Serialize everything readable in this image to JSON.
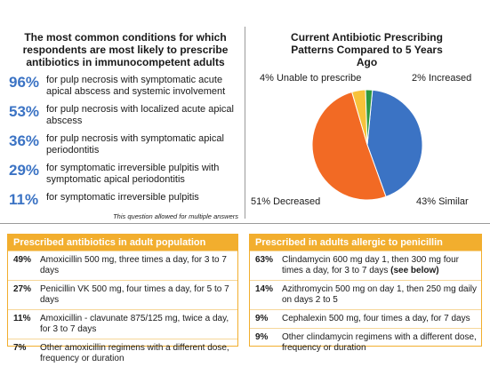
{
  "left": {
    "title": "The most common conditions for which respondents are most likely to prescribe antibiotics in immunocompetent adults",
    "items": [
      {
        "pct": "96%",
        "text": "for pulp necrosis with symptomatic acute apical abscess and systemic involvement"
      },
      {
        "pct": "53%",
        "text": "for pulp necrosis with localized acute apical abscess"
      },
      {
        "pct": "36%",
        "text": "for pulp necrosis with symptomatic apical periodontitis"
      },
      {
        "pct": "29%",
        "text": "for symptomatic irreversible pulpitis with symptomatic apical periodontitis"
      },
      {
        "pct": "11%",
        "text": "for symptomatic irreversible pulpitis"
      }
    ],
    "note": "This question allowed for multiple answers"
  },
  "chart_data": {
    "type": "pie",
    "title": "Current Antibiotic Prescribing Patterns Compared to 5 Years Ago",
    "slices": [
      {
        "label": "Similar",
        "value": 43,
        "color": "#3b73c4"
      },
      {
        "label": "Decreased",
        "value": 51,
        "color": "#f26a24"
      },
      {
        "label": "Unable to prescribe",
        "value": 4,
        "color": "#f7c23a"
      },
      {
        "label": "Increased",
        "value": 2,
        "color": "#2f9a3f"
      }
    ],
    "labels": {
      "unable": "4% Unable to prescribe",
      "increased": "2% Increased",
      "decreased": "51% Decreased",
      "similar": "43% Similar"
    }
  },
  "adult": {
    "header": "Prescribed antibiotics in adult population",
    "rows": [
      {
        "pct": "49%",
        "text": "Amoxicillin 500 mg, three times a day, for 3 to 7 days"
      },
      {
        "pct": "27%",
        "text": "Penicillin VK 500 mg, four times a day, for 5 to 7 days"
      },
      {
        "pct": "11%",
        "text": "Amoxicillin - clavunate 875/125 mg, twice a day, for 3 to 7 days"
      },
      {
        "pct": "7%",
        "text": "Other amoxicillin regimens with a different dose, frequency or duration"
      }
    ]
  },
  "allergic": {
    "header": "Prescribed in adults allergic to penicillin",
    "rows": [
      {
        "pct": "63%",
        "text": "Clindamycin 600 mg day 1, then 300 mg four times a day, for 3 to 7 days",
        "em": "(see below)"
      },
      {
        "pct": "14%",
        "text": "Azithromycin 500 mg on day 1, then 250 mg daily on days 2 to 5"
      },
      {
        "pct": "9%",
        "text": "Cephalexin 500 mg, four times a day, for 7 days"
      },
      {
        "pct": "9%",
        "text": "Other clindamycin regimens with a different dose, frequency or duration"
      }
    ]
  }
}
